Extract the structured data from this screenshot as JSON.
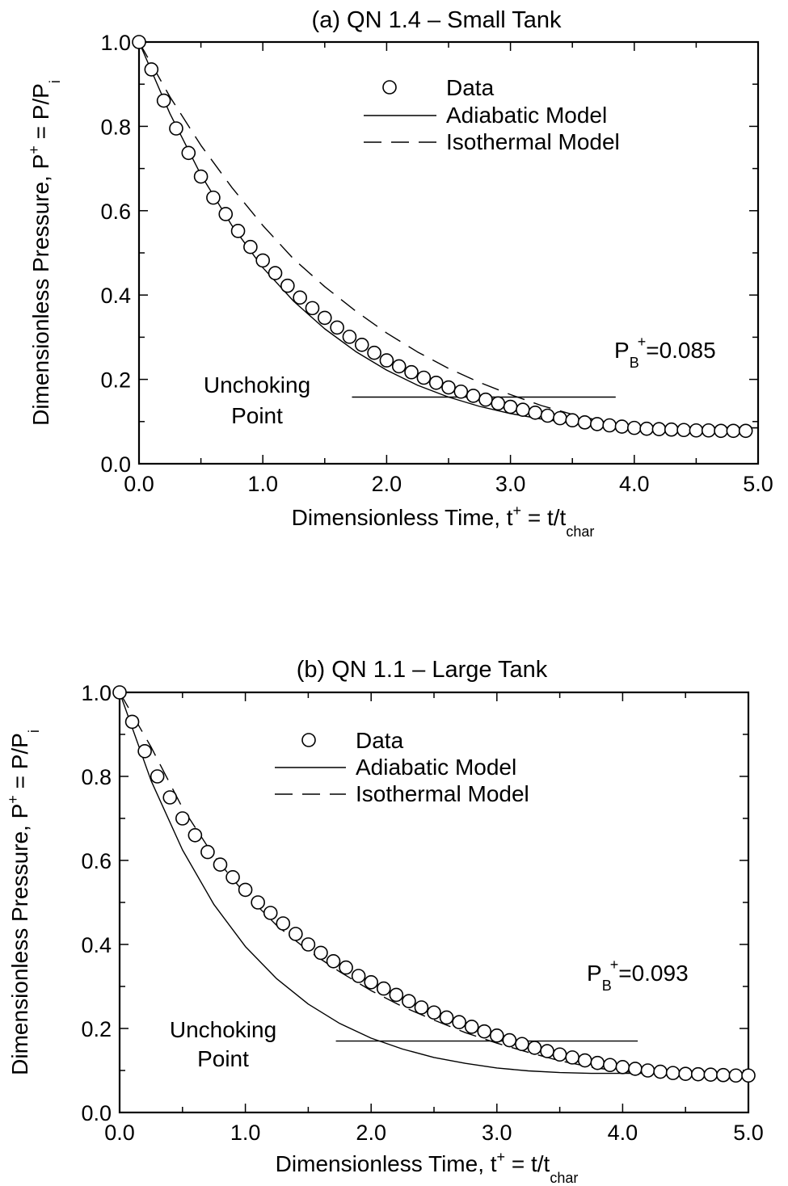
{
  "charts": [
    {
      "id": "a",
      "title": "(a)  QN 1.4 – Small Tank",
      "xlabel_main": "Dimensionless Time, t",
      "xlabel_sup": "+",
      "xlabel_eq": " = t/t",
      "xlabel_sub": "char",
      "ylabel_main": "Dimensionless Pressure, P",
      "ylabel_sup": "+",
      "ylabel_eq": " = P/P",
      "ylabel_sub": "i",
      "xticks": [
        "0.0",
        "1.0",
        "2.0",
        "3.0",
        "4.0",
        "5.0"
      ],
      "yticks": [
        "0.0",
        "0.2",
        "0.4",
        "0.6",
        "0.8",
        "1.0"
      ],
      "legend": {
        "data": "Data",
        "adiabatic": "Adiabatic Model",
        "isothermal": "Isothermal Model"
      },
      "pb_main": "P",
      "pb_sub": "B",
      "pb_sup": "+",
      "pb_value": "=0.085",
      "unchoking_line1": "Unchoking",
      "unchoking_line2": "Point"
    },
    {
      "id": "b",
      "title": "(b)  QN 1.1 – Large Tank",
      "xlabel_main": "Dimensionless Time, t",
      "xlabel_sup": "+",
      "xlabel_eq": " = t/t",
      "xlabel_sub": "char",
      "ylabel_main": "Dimensionless Pressure, P",
      "ylabel_sup": "+",
      "ylabel_eq": " = P/P",
      "ylabel_sub": "i",
      "xticks": [
        "0.0",
        "1.0",
        "2.0",
        "3.0",
        "4.0",
        "5.0"
      ],
      "yticks": [
        "0.0",
        "0.2",
        "0.4",
        "0.6",
        "0.8",
        "1.0"
      ],
      "legend": {
        "data": "Data",
        "adiabatic": "Adiabatic Model",
        "isothermal": "Isothermal Model"
      },
      "pb_main": "P",
      "pb_sub": "B",
      "pb_sup": "+",
      "pb_value": "=0.093",
      "unchoking_line1": "Unchoking",
      "unchoking_line2": "Point"
    }
  ],
  "chart_data": [
    {
      "type": "scatter",
      "title": "(a)  QN 1.4 – Small Tank",
      "xlabel": "Dimensionless Time, t+ = t/tchar",
      "ylabel": "Dimensionless Pressure, P+ = P/Pi",
      "xlim": [
        0,
        5
      ],
      "ylim": [
        0,
        1
      ],
      "legend_position": "top-right",
      "grid": false,
      "series": [
        {
          "name": "Data",
          "marker": "open-circle",
          "x": [
            0.0,
            0.1,
            0.2,
            0.3,
            0.4,
            0.5,
            0.6,
            0.7,
            0.8,
            0.9,
            1.0,
            1.1,
            1.2,
            1.3,
            1.4,
            1.5,
            1.6,
            1.7,
            1.8,
            1.9,
            2.0,
            2.1,
            2.2,
            2.3,
            2.4,
            2.5,
            2.6,
            2.7,
            2.8,
            2.9,
            3.0,
            3.1,
            3.2,
            3.3,
            3.4,
            3.5,
            3.6,
            3.7,
            3.8,
            3.9,
            4.0,
            4.1,
            4.2,
            4.3,
            4.4,
            4.5,
            4.6,
            4.7,
            4.8,
            4.9
          ],
          "y": [
            1.0,
            0.935,
            0.861,
            0.795,
            0.737,
            0.681,
            0.631,
            0.592,
            0.552,
            0.514,
            0.482,
            0.452,
            0.422,
            0.394,
            0.369,
            0.346,
            0.323,
            0.301,
            0.282,
            0.263,
            0.245,
            0.231,
            0.217,
            0.204,
            0.192,
            0.181,
            0.171,
            0.161,
            0.152,
            0.143,
            0.135,
            0.128,
            0.121,
            0.114,
            0.108,
            0.103,
            0.098,
            0.094,
            0.091,
            0.088,
            0.085,
            0.083,
            0.082,
            0.081,
            0.08,
            0.079,
            0.079,
            0.078,
            0.078,
            0.078
          ]
        },
        {
          "name": "Adiabatic Model",
          "style": "solid",
          "x": [
            0.0,
            0.25,
            0.5,
            0.75,
            1.0,
            1.25,
            1.5,
            1.75,
            2.0,
            2.25,
            2.5,
            2.75,
            3.0,
            3.25,
            3.5,
            3.75,
            4.0,
            4.25,
            4.5,
            4.75,
            5.0
          ],
          "y": [
            1.0,
            0.83,
            0.685,
            0.565,
            0.465,
            0.385,
            0.32,
            0.266,
            0.222,
            0.186,
            0.158,
            0.136,
            0.119,
            0.106,
            0.096,
            0.089,
            0.085,
            0.085,
            0.085,
            0.085,
            0.085
          ]
        },
        {
          "name": "Isothermal Model",
          "style": "dashed",
          "x": [
            0.0,
            0.25,
            0.5,
            0.75,
            1.0,
            1.25,
            1.5,
            1.75,
            2.0,
            2.25,
            2.5,
            2.75,
            3.0,
            3.25,
            3.5,
            3.75,
            4.0,
            4.25,
            4.5,
            4.75,
            5.0
          ],
          "y": [
            1.0,
            0.87,
            0.755,
            0.655,
            0.565,
            0.485,
            0.42,
            0.362,
            0.31,
            0.265,
            0.226,
            0.193,
            0.164,
            0.138,
            0.117,
            0.1,
            0.088,
            0.085,
            0.085,
            0.085,
            0.085
          ]
        },
        {
          "name": "Unchoking Point",
          "style": "solid-horizontal",
          "x": [
            1.72,
            3.85
          ],
          "y": [
            0.158,
            0.158
          ]
        }
      ],
      "annotations": [
        "P_B+ =0.085",
        "Unchoking Point"
      ]
    },
    {
      "type": "scatter",
      "title": "(b)  QN 1.1 – Large Tank",
      "xlabel": "Dimensionless Time, t+ = t/tchar",
      "ylabel": "Dimensionless Pressure, P+ = P/Pi",
      "xlim": [
        0,
        5
      ],
      "ylim": [
        0,
        1
      ],
      "legend_position": "top-right",
      "grid": false,
      "series": [
        {
          "name": "Data",
          "marker": "open-circle",
          "x": [
            0.0,
            0.1,
            0.2,
            0.3,
            0.4,
            0.5,
            0.6,
            0.7,
            0.8,
            0.9,
            1.0,
            1.1,
            1.2,
            1.3,
            1.4,
            1.5,
            1.6,
            1.7,
            1.8,
            1.9,
            2.0,
            2.1,
            2.2,
            2.3,
            2.4,
            2.5,
            2.6,
            2.7,
            2.8,
            2.9,
            3.0,
            3.1,
            3.2,
            3.3,
            3.4,
            3.5,
            3.6,
            3.7,
            3.8,
            3.9,
            4.0,
            4.1,
            4.2,
            4.3,
            4.4,
            4.5,
            4.6,
            4.7,
            4.8,
            4.9,
            5.0
          ],
          "y": [
            1.0,
            0.93,
            0.86,
            0.8,
            0.75,
            0.7,
            0.66,
            0.62,
            0.59,
            0.56,
            0.53,
            0.5,
            0.475,
            0.45,
            0.425,
            0.4,
            0.38,
            0.36,
            0.345,
            0.325,
            0.31,
            0.295,
            0.28,
            0.265,
            0.25,
            0.238,
            0.226,
            0.215,
            0.204,
            0.193,
            0.183,
            0.172,
            0.163,
            0.154,
            0.146,
            0.138,
            0.131,
            0.124,
            0.118,
            0.113,
            0.108,
            0.104,
            0.1,
            0.097,
            0.094,
            0.092,
            0.091,
            0.09,
            0.089,
            0.088,
            0.088
          ]
        },
        {
          "name": "Adiabatic Model",
          "style": "solid",
          "x": [
            0.0,
            0.25,
            0.5,
            0.75,
            1.0,
            1.25,
            1.5,
            1.75,
            2.0,
            2.25,
            2.5,
            2.75,
            3.0,
            3.25,
            3.5,
            3.75,
            4.0,
            4.25,
            4.5,
            4.75,
            5.0
          ],
          "y": [
            1.0,
            0.79,
            0.625,
            0.495,
            0.395,
            0.318,
            0.258,
            0.212,
            0.177,
            0.151,
            0.131,
            0.117,
            0.106,
            0.099,
            0.095,
            0.093,
            0.093,
            0.093,
            0.093,
            0.093,
            0.093
          ]
        },
        {
          "name": "Isothermal Model",
          "style": "dashed",
          "x": [
            0.0,
            0.25,
            0.5,
            0.75,
            1.0,
            1.25,
            1.5,
            1.75,
            2.0,
            2.25,
            2.5,
            2.75,
            3.0,
            3.25,
            3.5,
            3.75,
            4.0,
            4.25,
            4.5,
            4.75,
            5.0
          ],
          "y": [
            1.0,
            0.87,
            0.725,
            0.61,
            0.52,
            0.445,
            0.385,
            0.335,
            0.29,
            0.252,
            0.22,
            0.19,
            0.165,
            0.143,
            0.123,
            0.108,
            0.097,
            0.093,
            0.093,
            0.093,
            0.093
          ]
        },
        {
          "name": "Unchoking Point",
          "style": "solid-horizontal",
          "x": [
            1.72,
            4.12
          ],
          "y": [
            0.17,
            0.17
          ]
        }
      ],
      "annotations": [
        "P_B+ =0.093",
        "Unchoking Point"
      ]
    }
  ]
}
